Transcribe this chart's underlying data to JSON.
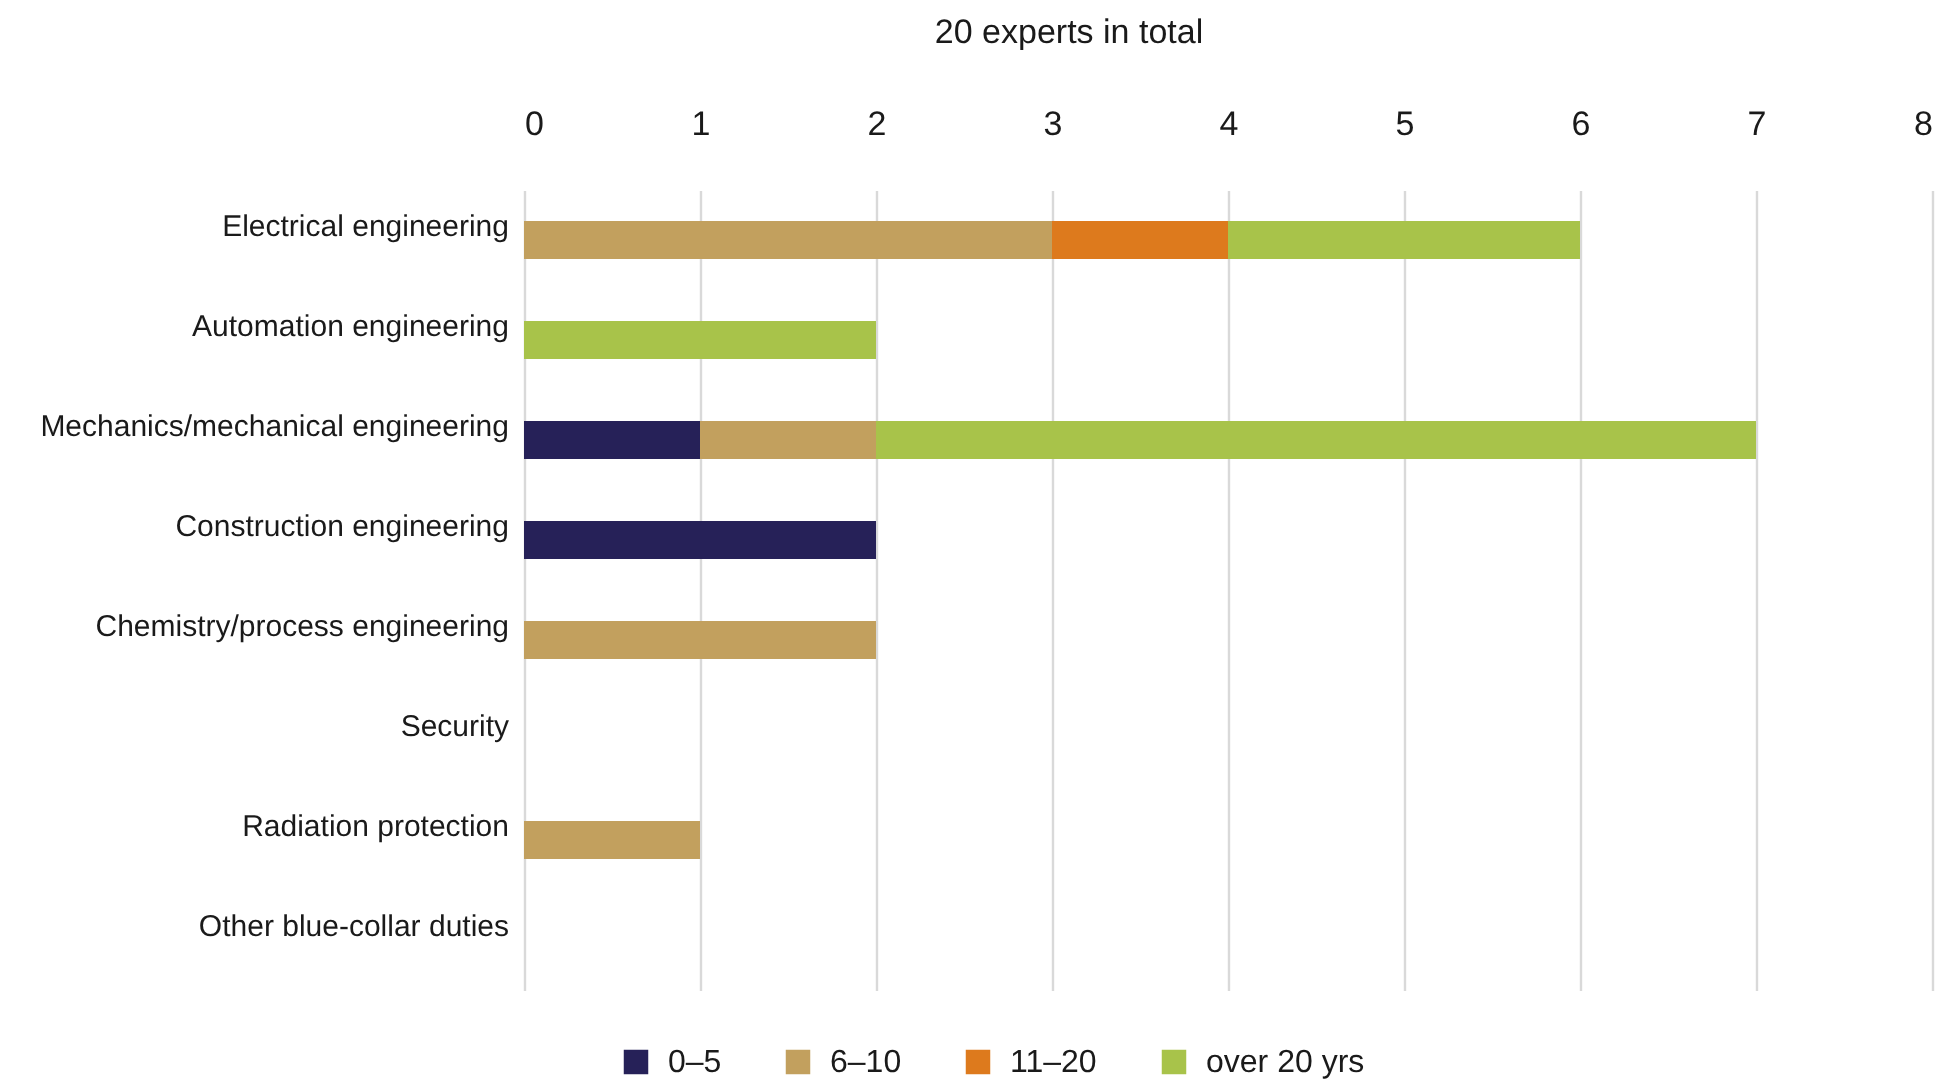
{
  "chart_data": {
    "type": "bar",
    "orientation": "horizontal",
    "stacked": true,
    "xlabel": "20 experts in total",
    "categories": [
      "Electrical engineering",
      "Automation engineering",
      "Mechanics/mechanical engineering",
      "Construction engineering",
      "Chemistry/process engineering",
      "Security",
      "Radiation protection",
      "Other blue-collar duties"
    ],
    "series": [
      {
        "name": "0–5",
        "color": "#262158",
        "values": [
          null,
          null,
          1,
          2,
          null,
          null,
          null,
          null
        ]
      },
      {
        "name": "6–10",
        "color": "#c2a05e",
        "values": [
          3,
          null,
          1,
          null,
          2,
          null,
          1,
          null
        ]
      },
      {
        "name": "11–20",
        "color": "#dd7a1d",
        "values": [
          1,
          null,
          null,
          null,
          null,
          null,
          null,
          null
        ]
      },
      {
        "name": "over 20 yrs",
        "color": "#a8c34a",
        "values": [
          2,
          2,
          5,
          null,
          null,
          null,
          null,
          null
        ]
      }
    ],
    "xlim": [
      0,
      8
    ],
    "xticks": [
      0,
      1,
      2,
      3,
      4,
      5,
      6,
      7,
      8
    ],
    "grid": "x",
    "legend": "bottom"
  }
}
